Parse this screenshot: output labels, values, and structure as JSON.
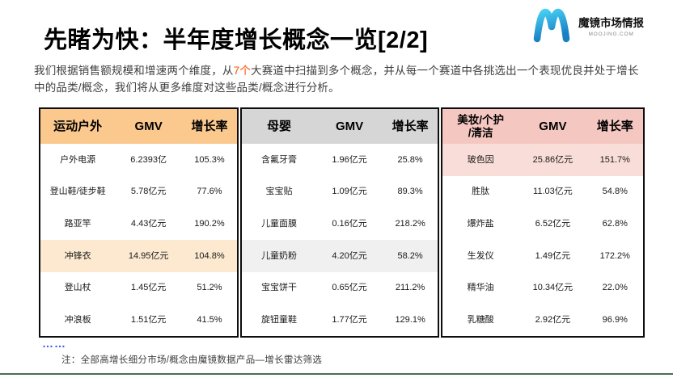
{
  "page": {
    "title": "先睹为快：半年度增长概念一览[2/2]",
    "ellipsis": "……",
    "note": "注：全部高增长细分市场/概念由魔镜数据产品—增长雷达筛选",
    "bottom_line_color": "#4a6b56"
  },
  "logo": {
    "name": "魔镜市场情报",
    "domain": "MOOJING.COM",
    "mark_color_top": "#45d0f2",
    "mark_color_bottom": "#1b7fc4"
  },
  "subtitle": {
    "part1": "我们根据销售额规模和增速两个维度，从",
    "highlight": "7个",
    "highlight_color": "#ff5000",
    "part2": "大赛道中扫描到多个概念，并从每一个赛道中各挑选出一个表现优良并处于增长中的品类/概念，我们将从更多维度对这些品类/概念进行分析。"
  },
  "tables": [
    {
      "category": "运动户外",
      "header": [
        "运动户外",
        "GMV",
        "增长率"
      ],
      "header_color": "#fbc88d",
      "highlight_color": "#fde9d0",
      "rows": [
        {
          "name": "户外电源",
          "gmv": "6.2393亿",
          "growth": "105.3%",
          "highlight": false
        },
        {
          "name": "登山鞋/徒步鞋",
          "gmv": "5.78亿元",
          "growth": "77.6%",
          "highlight": false
        },
        {
          "name": "路亚竿",
          "gmv": "4.43亿元",
          "growth": "190.2%",
          "highlight": false
        },
        {
          "name": "冲锋衣",
          "gmv": "14.95亿元",
          "growth": "104.8%",
          "highlight": true
        },
        {
          "name": "登山杖",
          "gmv": "1.45亿元",
          "growth": "51.2%",
          "highlight": false
        },
        {
          "name": "冲浪板",
          "gmv": "1.51亿元",
          "growth": "41.5%",
          "highlight": false
        }
      ]
    },
    {
      "category": "母婴",
      "header": [
        "母婴",
        "GMV",
        "增长率"
      ],
      "header_color": "#d6d6d6",
      "highlight_color": "#f0f0f0",
      "rows": [
        {
          "name": "含氟牙膏",
          "gmv": "1.96亿元",
          "growth": "25.8%",
          "highlight": false
        },
        {
          "name": "宝宝贴",
          "gmv": "1.09亿元",
          "growth": "89.3%",
          "highlight": false
        },
        {
          "name": "儿童面膜",
          "gmv": "0.16亿元",
          "growth": "218.2%",
          "highlight": false
        },
        {
          "name": "儿童奶粉",
          "gmv": "4.20亿元",
          "growth": "58.2%",
          "highlight": true
        },
        {
          "name": "宝宝饼干",
          "gmv": "0.65亿元",
          "growth": "211.2%",
          "highlight": false
        },
        {
          "name": "旋钮童鞋",
          "gmv": "1.77亿元",
          "growth": "129.1%",
          "highlight": false
        }
      ]
    },
    {
      "category": "美妆/个护/清洁",
      "header": [
        "美妆/个护\n/清洁",
        "GMV",
        "增长率"
      ],
      "header_color": "#f5c7c1",
      "highlight_color": "#f9ddd8",
      "rows": [
        {
          "name": "玻色因",
          "gmv": "25.86亿元",
          "growth": "151.7%",
          "highlight": true
        },
        {
          "name": "胜肽",
          "gmv": "11.03亿元",
          "growth": "54.8%",
          "highlight": false
        },
        {
          "name": "爆炸盐",
          "gmv": "6.52亿元",
          "growth": "62.8%",
          "highlight": false
        },
        {
          "name": "生发仪",
          "gmv": "1.49亿元",
          "growth": "172.2%",
          "highlight": false
        },
        {
          "name": "精华油",
          "gmv": "10.34亿元",
          "growth": "22.0%",
          "highlight": false
        },
        {
          "name": "乳糖酸",
          "gmv": "2.92亿元",
          "growth": "96.9%",
          "highlight": false
        }
      ]
    }
  ]
}
